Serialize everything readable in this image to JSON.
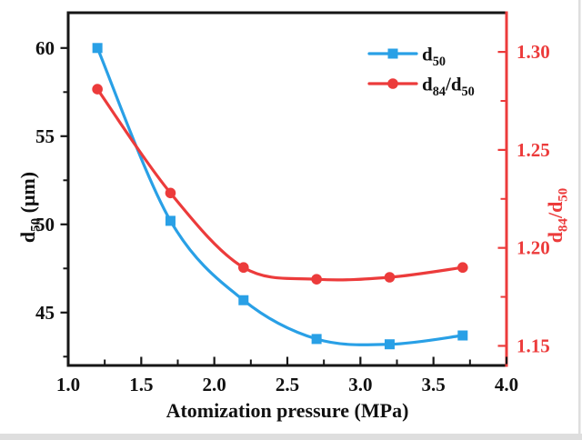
{
  "colors": {
    "blue": "#29A0E6",
    "red": "#EC3B3B",
    "axis_black": "#161616",
    "label_black": "#111111",
    "artifact_grey": "#dedede"
  },
  "chart_data": {
    "type": "line",
    "title": "",
    "x": [
      1.2,
      1.7,
      2.2,
      2.7,
      3.2,
      3.7
    ],
    "series": [
      {
        "name": "d50",
        "axis": "left",
        "color_key": "blue",
        "marker": "square",
        "label_segments": [
          {
            "t": "d"
          },
          {
            "t": "50",
            "sub": true
          }
        ],
        "values": [
          60.0,
          50.2,
          45.7,
          43.5,
          43.2,
          43.7
        ]
      },
      {
        "name": "d84/d50",
        "axis": "right",
        "color_key": "red",
        "marker": "circle",
        "label_segments": [
          {
            "t": "d"
          },
          {
            "t": "84",
            "sub": true
          },
          {
            "t": "/d"
          },
          {
            "t": "50",
            "sub": true
          }
        ],
        "values": [
          1.281,
          1.228,
          1.19,
          1.184,
          1.185,
          1.19
        ]
      }
    ],
    "x_axis": {
      "label_segments": [
        {
          "t": "Atomization pressure (MPa)"
        }
      ],
      "range": [
        1.0,
        4.0
      ],
      "tick_values": [
        1.0,
        1.5,
        2.0,
        2.5,
        3.0,
        3.5,
        4.0
      ],
      "tick_labels": [
        "1.0",
        "1.5",
        "2.0",
        "2.5",
        "3.0",
        "3.5",
        "4.0"
      ],
      "minor_ticks": [
        1.25,
        1.75,
        2.25,
        2.75,
        3.25,
        3.75
      ]
    },
    "y_left": {
      "label_segments": [
        {
          "t": "d"
        },
        {
          "t": "50",
          "sub": true
        },
        {
          "t": " (μm)"
        }
      ],
      "range": [
        42,
        62
      ],
      "tick_values": [
        60,
        55,
        50,
        45
      ],
      "tick_labels": [
        "60",
        "55",
        "50",
        "45"
      ],
      "minor_ticks": [
        57.5,
        52.5,
        47.5,
        42.5
      ],
      "color_key": "label_black"
    },
    "y_right": {
      "label_segments": [
        {
          "t": "d"
        },
        {
          "t": "84",
          "sub": true
        },
        {
          "t": "/d"
        },
        {
          "t": "50",
          "sub": true
        }
      ],
      "range": [
        1.14,
        1.32
      ],
      "tick_values": [
        1.3,
        1.25,
        1.2,
        1.15
      ],
      "tick_labels": [
        "1.30",
        "1.25",
        "1.20",
        "1.15"
      ],
      "minor_ticks": [
        1.275,
        1.225,
        1.175
      ],
      "color_key": "red"
    },
    "legend": {
      "position": "top-right"
    },
    "grid": false
  }
}
